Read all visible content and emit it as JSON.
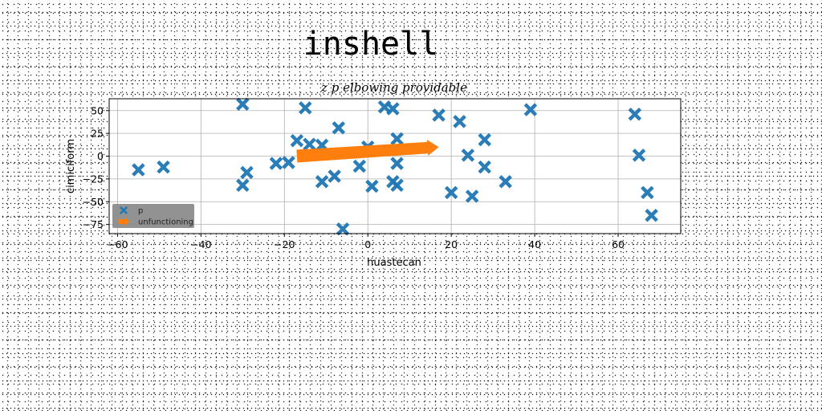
{
  "figure": {
    "suptitle": "inshell"
  },
  "chart_data": {
    "type": "scatter",
    "title": "z p elbowing providable",
    "xlabel": "huastecan",
    "ylabel": "cimiciform",
    "xlim": [
      -62,
      75
    ],
    "ylim": [
      -85,
      63
    ],
    "xticks": [
      -60,
      -40,
      -20,
      0,
      20,
      40,
      60
    ],
    "yticks": [
      -75,
      -50,
      -25,
      0,
      25,
      50
    ],
    "grid": true,
    "legend_position": "lower-left",
    "series": [
      {
        "name": "p",
        "kind": "scatter",
        "marker": "X",
        "color": "#1f77b4",
        "points": [
          [
            -55,
            -15
          ],
          [
            -49,
            -12
          ],
          [
            -30,
            57
          ],
          [
            -30,
            -32
          ],
          [
            -29,
            -18
          ],
          [
            -22,
            -8
          ],
          [
            -19,
            -7
          ],
          [
            -17,
            17
          ],
          [
            -15,
            53
          ],
          [
            -14,
            13
          ],
          [
            -11,
            -28
          ],
          [
            -11,
            12
          ],
          [
            -8,
            -22
          ],
          [
            -7,
            31
          ],
          [
            -6,
            -80
          ],
          [
            -2,
            -11
          ],
          [
            0,
            10
          ],
          [
            1,
            -33
          ],
          [
            4,
            54
          ],
          [
            6,
            52
          ],
          [
            6,
            -28
          ],
          [
            7,
            19
          ],
          [
            7,
            -8
          ],
          [
            7,
            -32
          ],
          [
            17,
            45
          ],
          [
            20,
            -40
          ],
          [
            22,
            38
          ],
          [
            24,
            1
          ],
          [
            25,
            -44
          ],
          [
            28,
            18
          ],
          [
            28,
            -12
          ],
          [
            33,
            -28
          ],
          [
            39,
            51
          ],
          [
            64,
            46
          ],
          [
            65,
            1
          ],
          [
            67,
            -40
          ],
          [
            68,
            -65
          ]
        ]
      },
      {
        "name": "unfunctioning",
        "kind": "arrow",
        "color": "#ff7f0e",
        "from": [
          -17,
          0
        ],
        "to": [
          17,
          10
        ]
      }
    ]
  }
}
